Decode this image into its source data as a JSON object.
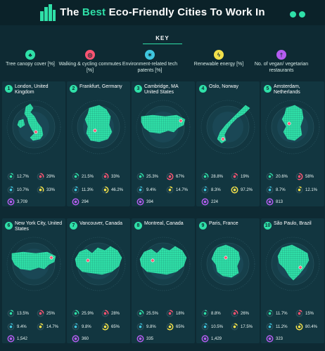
{
  "header": {
    "title_pre": "The ",
    "title_highlight": "Best",
    "title_post": " Eco-Friendly Cities To Work In"
  },
  "key": {
    "title": "KEY",
    "items": [
      {
        "label": "Tree canopy cover [%]",
        "icon": "tree-icon",
        "color": "#2fe0a8"
      },
      {
        "label": "Walking & cycling commutes [%]",
        "icon": "bicycle-icon",
        "color": "#ff5472"
      },
      {
        "label": "Environment-related tech patents [%]",
        "icon": "lightbulb-icon",
        "color": "#3fc7e0"
      },
      {
        "label": "Renewable energy [%]",
        "icon": "lightning-icon",
        "color": "#f2e04a"
      },
      {
        "label": "No. of vegan/ vegetarian restaurants",
        "icon": "fork-knife-icon",
        "color": "#b45cf0"
      }
    ]
  },
  "cities": [
    {
      "rank": "1",
      "name": "London, United Kingdom",
      "map": "map-united-kingdom",
      "tree": "12.7%",
      "tree_fill": 0.127,
      "walk": "29%",
      "walk_fill": 0.29,
      "patents": "10.7%",
      "patents_fill": 0.107,
      "renewable": "33%",
      "renewable_fill": 0.33,
      "vegan": "3,709"
    },
    {
      "rank": "2",
      "name": "Frankfurt, Germany",
      "map": "map-germany",
      "tree": "21.5%",
      "tree_fill": 0.215,
      "walk": "33%",
      "walk_fill": 0.33,
      "patents": "11.3%",
      "patents_fill": 0.113,
      "renewable": "46.2%",
      "renewable_fill": 0.462,
      "vegan": "294"
    },
    {
      "rank": "3",
      "name": "Cambridge, MA United States",
      "map": "map-united-states",
      "tree": "25.3%",
      "tree_fill": 0.253,
      "walk": "67%",
      "walk_fill": 0.67,
      "patents": "9.4%",
      "patents_fill": 0.094,
      "renewable": "14.7%",
      "renewable_fill": 0.147,
      "vegan": "394"
    },
    {
      "rank": "4",
      "name": "Oslo, Norway",
      "map": "map-norway",
      "tree": "28.8%",
      "tree_fill": 0.288,
      "walk": "19%",
      "walk_fill": 0.19,
      "patents": "8.3%",
      "patents_fill": 0.083,
      "renewable": "97.2%",
      "renewable_fill": 0.972,
      "vegan": "224"
    },
    {
      "rank": "5",
      "name": "Amsterdam, Netherlands",
      "map": "map-netherlands",
      "tree": "20.6%",
      "tree_fill": 0.206,
      "walk": "58%",
      "walk_fill": 0.58,
      "patents": "8.7%",
      "patents_fill": 0.087,
      "renewable": "12.1%",
      "renewable_fill": 0.121,
      "vegan": "813"
    },
    {
      "rank": "6",
      "name": "New York City, United States",
      "map": "map-united-states",
      "tree": "13.5%",
      "tree_fill": 0.135,
      "walk": "25%",
      "walk_fill": 0.25,
      "patents": "9.4%",
      "patents_fill": 0.094,
      "renewable": "14.7%",
      "renewable_fill": 0.147,
      "vegan": "1,542"
    },
    {
      "rank": "7",
      "name": "Vancouver, Canada",
      "map": "map-canada",
      "tree": "25.9%",
      "tree_fill": 0.259,
      "walk": "28%",
      "walk_fill": 0.28,
      "patents": "9.8%",
      "patents_fill": 0.098,
      "renewable": "65%",
      "renewable_fill": 0.65,
      "vegan": "360"
    },
    {
      "rank": "8",
      "name": "Montreal, Canada",
      "map": "map-canada",
      "tree": "25.5%",
      "tree_fill": 0.255,
      "walk": "18%",
      "walk_fill": 0.18,
      "patents": "9.8%",
      "patents_fill": 0.098,
      "renewable": "65%",
      "renewable_fill": 0.65,
      "vegan": "335"
    },
    {
      "rank": "9",
      "name": "Paris, France",
      "map": "map-france",
      "tree": "8.8%",
      "tree_fill": 0.088,
      "walk": "26%",
      "walk_fill": 0.26,
      "patents": "10.5%",
      "patents_fill": 0.105,
      "renewable": "17.5%",
      "renewable_fill": 0.175,
      "vegan": "1,429"
    },
    {
      "rank": "10",
      "name": "São Paulo, Brazil",
      "map": "map-brazil",
      "tree": "11.7%",
      "tree_fill": 0.117,
      "walk": "15%",
      "walk_fill": 0.15,
      "patents": "11.2%",
      "patents_fill": 0.112,
      "renewable": "80.4%",
      "renewable_fill": 0.804,
      "vegan": "323"
    }
  ],
  "colors": {
    "accent": "#2fe0a8",
    "walk": "#ff5472",
    "patents": "#3fc7e0",
    "renewable": "#f2e04a",
    "vegan": "#b45cf0",
    "marker": "#ff5472"
  }
}
